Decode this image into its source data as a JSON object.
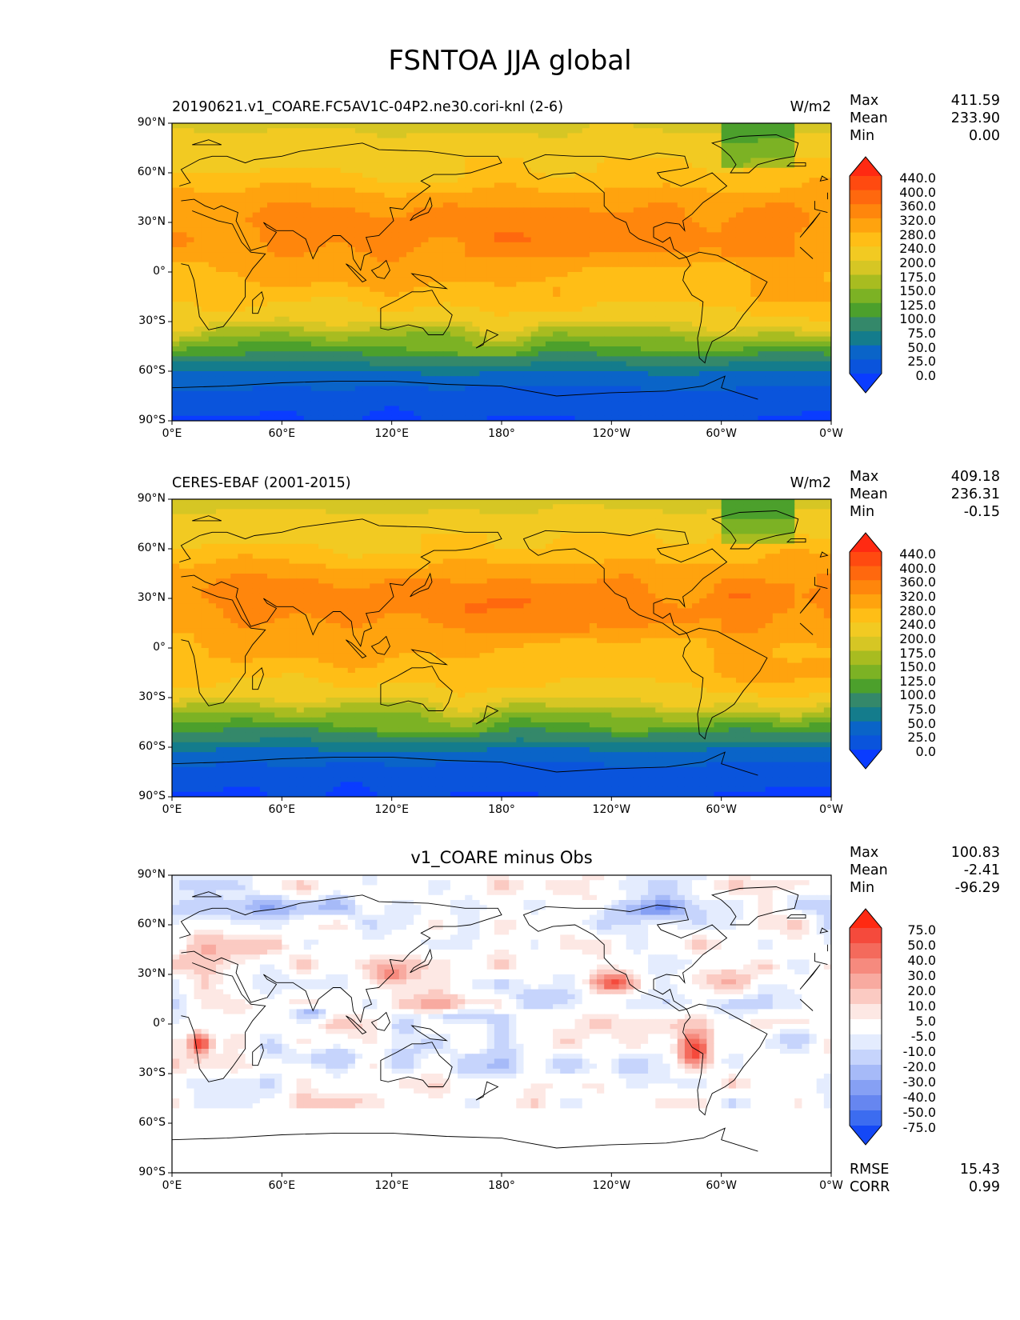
{
  "figure": {
    "title": "FSNTOA JJA global"
  },
  "xticks": [
    "0°E",
    "60°E",
    "120°E",
    "180°",
    "120°W",
    "60°W",
    "0°W"
  ],
  "yticks": [
    "90°N",
    "60°N",
    "30°N",
    "0°",
    "30°S",
    "60°S",
    "90°S"
  ],
  "panels": [
    {
      "title": "20190621.v1_COARE.FC5AV1C-04P2.ne30.cori-knl (2-6)",
      "units": "W/m2",
      "stats": {
        "max_label": "Max",
        "max": "411.59",
        "mean_label": "Mean",
        "mean": "233.90",
        "min_label": "Min",
        "min": "0.00"
      },
      "colorbar": {
        "labels": [
          "440.0",
          "400.0",
          "360.0",
          "320.0",
          "280.0",
          "240.0",
          "200.0",
          "175.0",
          "150.0",
          "125.0",
          "100.0",
          "75.0",
          "50.0",
          "25.0",
          "0.0"
        ],
        "colors": [
          "#ff2a12",
          "#ff4a10",
          "#ff680e",
          "#ff860c",
          "#ffa30e",
          "#ffbe16",
          "#f2ca22",
          "#d6c624",
          "#a8bc20",
          "#7cb224",
          "#4ca02c",
          "#34886a",
          "#147c8c",
          "#0a64c8",
          "#0a54dc",
          "#0a3cff"
        ]
      }
    },
    {
      "title": "CERES-EBAF (2001-2015)",
      "units": "W/m2",
      "stats": {
        "max_label": "Max",
        "max": "409.18",
        "mean_label": "Mean",
        "mean": "236.31",
        "min_label": "Min",
        "min": "-0.15"
      },
      "colorbar": {
        "labels": [
          "440.0",
          "400.0",
          "360.0",
          "320.0",
          "280.0",
          "240.0",
          "200.0",
          "175.0",
          "150.0",
          "125.0",
          "100.0",
          "75.0",
          "50.0",
          "25.0",
          "0.0"
        ],
        "colors": [
          "#ff2a12",
          "#ff4a10",
          "#ff680e",
          "#ff860c",
          "#ffa30e",
          "#ffbe16",
          "#f2ca22",
          "#d6c624",
          "#a8bc20",
          "#7cb224",
          "#4ca02c",
          "#34886a",
          "#147c8c",
          "#0a64c8",
          "#0a54dc",
          "#0a3cff"
        ]
      }
    },
    {
      "title": "v1_COARE minus Obs",
      "units": "",
      "stats": {
        "max_label": "Max",
        "max": "100.83",
        "mean_label": "Mean",
        "mean": "-2.41",
        "min_label": "Min",
        "min": "-96.29"
      },
      "colorbar": {
        "labels": [
          "75.0",
          "50.0",
          "40.0",
          "30.0",
          "20.0",
          "10.0",
          "5.0",
          "-5.0",
          "-10.0",
          "-20.0",
          "-30.0",
          "-40.0",
          "-50.0",
          "-75.0"
        ],
        "colors": [
          "#ff2a12",
          "#f54a3c",
          "#f46a5c",
          "#f68a7e",
          "#f8aaa0",
          "#fbcac2",
          "#fde8e4",
          "#ffffff",
          "#e4ecfe",
          "#c6d4fc",
          "#a6baf8",
          "#86a0f4",
          "#6686f0",
          "#3c6cf0",
          "#1448f6"
        ]
      },
      "rmse_label": "RMSE",
      "rmse": "15.43",
      "corr_label": "CORR",
      "corr": "0.99"
    }
  ],
  "chart_data": [
    {
      "type": "heatmap",
      "title": "20190621.v1_COARE.FC5AV1C-04P2.ne30.cori-knl (2-6)",
      "units": "W/m2",
      "xlabel": "",
      "ylabel": "",
      "xlim": [
        0,
        360
      ],
      "ylim": [
        -90,
        90
      ],
      "colorbar_levels": [
        0,
        25,
        50,
        75,
        100,
        125,
        150,
        175,
        200,
        240,
        280,
        320,
        360,
        400,
        440
      ],
      "zonal_profile": {
        "lat": [
          90,
          75,
          60,
          45,
          30,
          15,
          0,
          -15,
          -30,
          -45,
          -60,
          -75,
          -90
        ],
        "value": [
          195,
          215,
          245,
          300,
          320,
          310,
          290,
          265,
          215,
          130,
          50,
          12,
          0
        ]
      },
      "max": 411.59,
      "mean": 233.9,
      "min": 0.0
    },
    {
      "type": "heatmap",
      "title": "CERES-EBAF (2001-2015)",
      "units": "W/m2",
      "xlabel": "",
      "ylabel": "",
      "xlim": [
        0,
        360
      ],
      "ylim": [
        -90,
        90
      ],
      "colorbar_levels": [
        0,
        25,
        50,
        75,
        100,
        125,
        150,
        175,
        200,
        240,
        280,
        320,
        360,
        400,
        440
      ],
      "zonal_profile": {
        "lat": [
          90,
          75,
          60,
          45,
          30,
          15,
          0,
          -15,
          -30,
          -45,
          -60,
          -75,
          -90
        ],
        "value": [
          190,
          215,
          250,
          305,
          325,
          305,
          285,
          265,
          220,
          135,
          55,
          12,
          0
        ]
      },
      "max": 409.18,
      "mean": 236.31,
      "min": -0.15
    },
    {
      "type": "heatmap",
      "title": "v1_COARE minus Obs",
      "units": "",
      "xlabel": "",
      "ylabel": "",
      "xlim": [
        0,
        360
      ],
      "ylim": [
        -90,
        90
      ],
      "colorbar_levels": [
        -75,
        -50,
        -40,
        -30,
        -20,
        -10,
        -5,
        5,
        10,
        20,
        30,
        40,
        50,
        75
      ],
      "max": 100.83,
      "mean": -2.41,
      "min": -96.29,
      "rmse": 15.43,
      "corr": 0.99
    }
  ]
}
